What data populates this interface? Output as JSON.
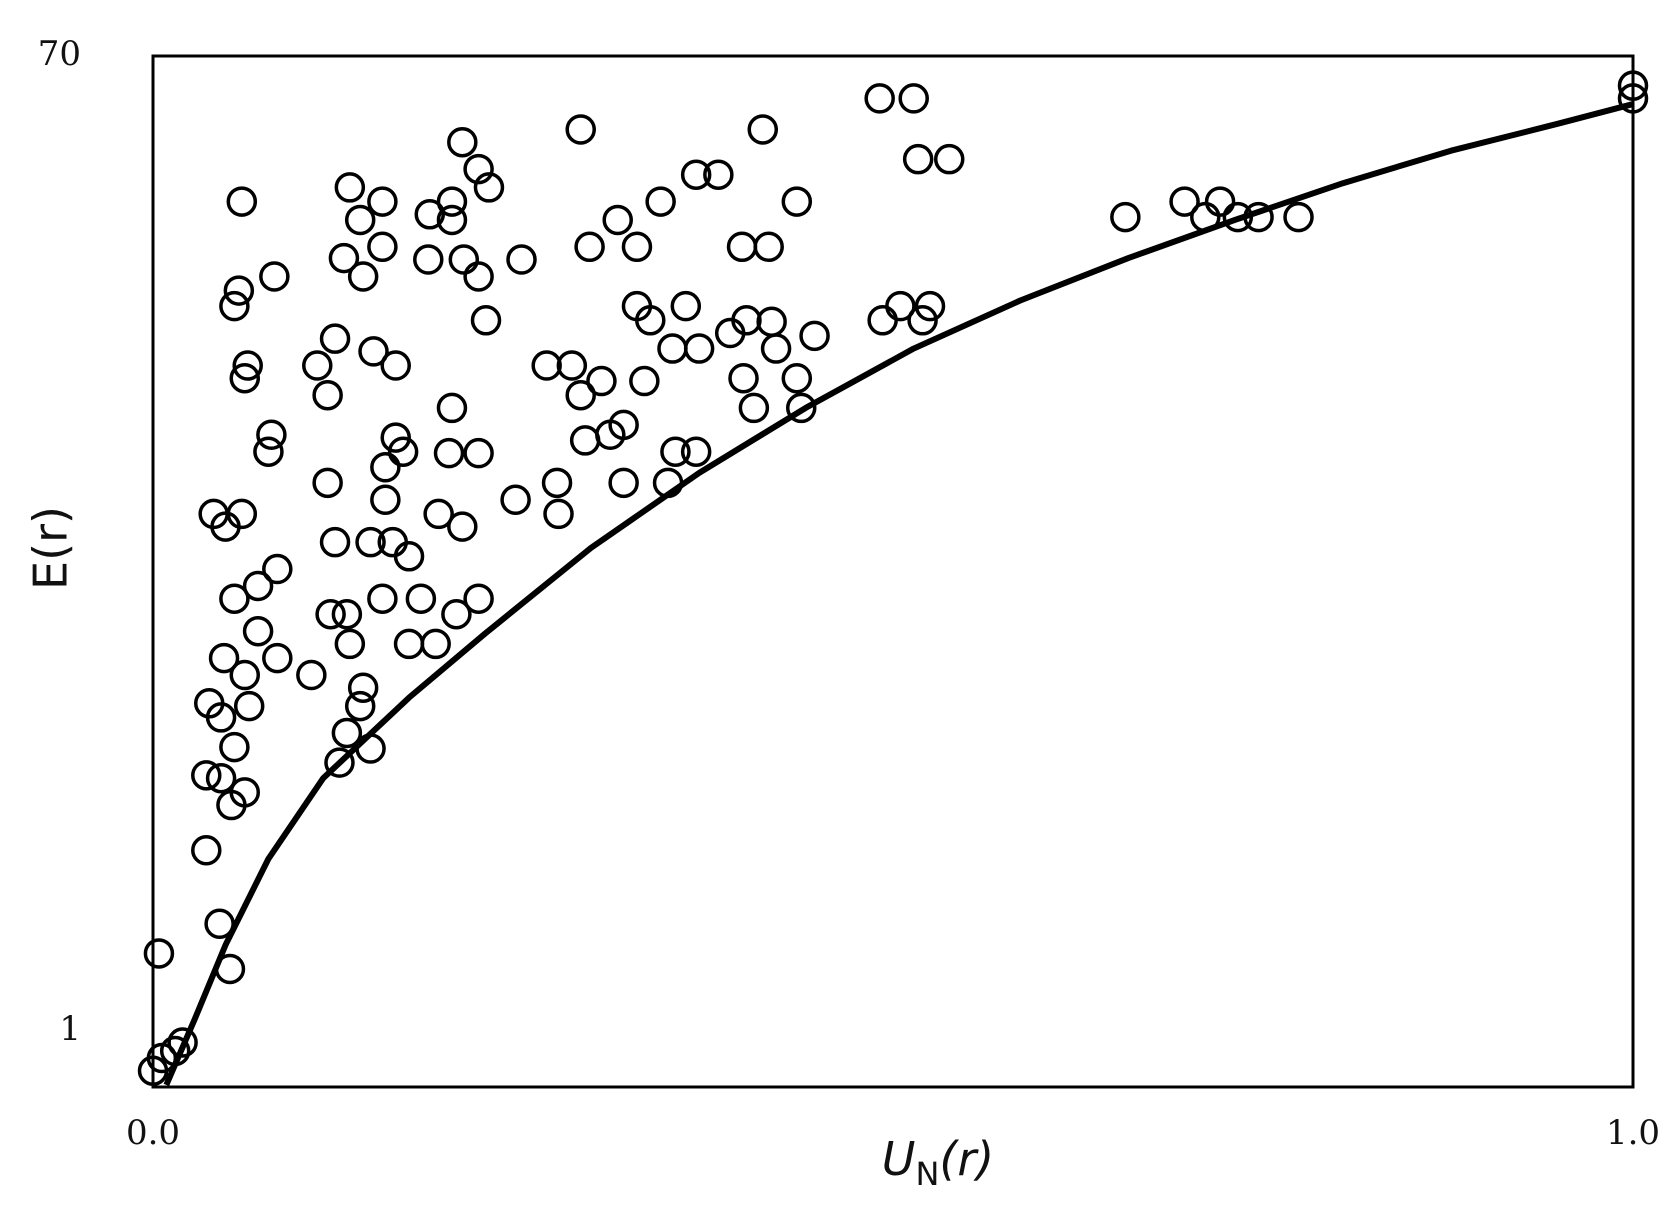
{
  "chart_data": {
    "type": "scatter",
    "y_label": "E(r)",
    "x_label": {
      "main": "U",
      "sub": "N",
      "suffix": "(r)"
    },
    "xlim": [
      0,
      1
    ],
    "xticks": [
      {
        "value": 0,
        "label": "0.0"
      },
      {
        "value": 1,
        "label": "1.0"
      }
    ],
    "ylim": [
      -2.95,
      70
    ],
    "yticks": [
      1,
      70
    ],
    "grid": false,
    "series": [
      {
        "type": "scatter",
        "color": "#000000",
        "x": [
          0.004,
          0.0,
          0.006,
          0.02,
          0.015,
          0.052,
          0.045,
          0.036,
          0.053,
          0.062,
          0.036,
          0.046,
          0.055,
          0.046,
          0.038,
          0.065,
          0.062,
          0.048,
          0.071,
          0.084,
          0.055,
          0.071,
          0.084,
          0.107,
          0.126,
          0.147,
          0.131,
          0.14,
          0.142,
          0.133,
          0.131,
          0.12,
          0.155,
          0.173,
          0.181,
          0.191,
          0.205,
          0.22,
          0.123,
          0.147,
          0.162,
          0.173,
          0.193,
          0.209,
          0.157,
          0.118,
          0.157,
          0.169,
          0.164,
          0.2,
          0.22,
          0.202,
          0.118,
          0.111,
          0.123,
          0.149,
          0.164,
          0.064,
          0.062,
          0.078,
          0.08,
          0.041,
          0.049,
          0.06,
          0.055,
          0.058,
          0.082,
          0.06,
          0.133,
          0.14,
          0.155,
          0.129,
          0.142,
          0.155,
          0.187,
          0.202,
          0.202,
          0.186,
          0.21,
          0.22,
          0.249,
          0.209,
          0.22,
          0.227,
          0.225,
          0.245,
          0.273,
          0.274,
          0.266,
          0.283,
          0.289,
          0.303,
          0.292,
          0.318,
          0.309,
          0.318,
          0.332,
          0.327,
          0.336,
          0.351,
          0.36,
          0.369,
          0.353,
          0.348,
          0.367,
          0.289,
          0.295,
          0.314,
          0.327,
          0.343,
          0.367,
          0.382,
          0.398,
          0.416,
          0.435,
          0.412,
          0.39,
          0.401,
          0.418,
          0.421,
          0.399,
          0.406,
          0.435,
          0.438,
          0.447,
          0.491,
          0.514,
          0.517,
          0.538,
          0.493,
          0.505,
          0.52,
          0.525,
          0.657,
          0.697,
          0.711,
          0.721,
          0.733,
          0.747,
          0.774,
          1.0,
          1.0
        ],
        "values": [
          6.5,
          -1.8,
          -0.9,
          0.2,
          -0.4,
          5.4,
          8.6,
          13.8,
          17.0,
          17.9,
          19.1,
          18.9,
          21.1,
          23.2,
          24.2,
          24.0,
          26.2,
          27.4,
          29.3,
          27.4,
          31.6,
          32.5,
          33.7,
          26.2,
          20.0,
          21.0,
          22.1,
          24.0,
          25.3,
          28.4,
          30.5,
          30.5,
          31.6,
          28.4,
          31.6,
          28.4,
          30.5,
          31.6,
          35.6,
          35.6,
          35.6,
          34.6,
          37.6,
          36.7,
          38.6,
          39.8,
          40.9,
          42.0,
          43.0,
          41.9,
          41.9,
          45.1,
          46.0,
          48.1,
          50.0,
          49.1,
          48.1,
          48.1,
          47.2,
          42.0,
          43.2,
          37.6,
          36.7,
          37.6,
          52.3,
          53.4,
          54.4,
          59.7,
          60.7,
          58.4,
          59.7,
          55.7,
          54.4,
          56.5,
          58.8,
          59.7,
          58.4,
          55.6,
          55.6,
          54.4,
          55.6,
          63.9,
          62.0,
          60.7,
          51.3,
          38.6,
          39.8,
          37.6,
          48.1,
          48.1,
          46.0,
          47.0,
          42.8,
          43.9,
          43.2,
          39.8,
          47.0,
          52.3,
          51.3,
          49.3,
          52.3,
          49.3,
          42.0,
          39.8,
          42.0,
          64.8,
          56.5,
          58.4,
          56.5,
          59.7,
          61.6,
          61.6,
          56.5,
          56.5,
          59.7,
          64.8,
          50.4,
          51.3,
          51.2,
          49.3,
          47.2,
          45.1,
          47.2,
          45.1,
          50.2,
          67.0,
          67.0,
          62.7,
          62.7,
          51.3,
          52.3,
          51.3,
          52.3,
          58.6,
          59.7,
          58.6,
          59.7,
          58.6,
          58.6,
          58.6,
          67.9,
          67.0
        ]
      },
      {
        "type": "line",
        "color": "#000000",
        "x": [
          0.009,
          0.028,
          0.049,
          0.078,
          0.115,
          0.173,
          0.224,
          0.296,
          0.369,
          0.441,
          0.514,
          0.586,
          0.659,
          0.731,
          0.804,
          0.877,
          0.949,
          1.0
        ],
        "values": [
          -2.8,
          1.8,
          7.1,
          13.2,
          18.9,
          24.6,
          29.1,
          35.2,
          40.5,
          45.1,
          49.3,
          52.7,
          55.7,
          58.4,
          61.0,
          63.3,
          65.2,
          66.6
        ]
      }
    ]
  }
}
